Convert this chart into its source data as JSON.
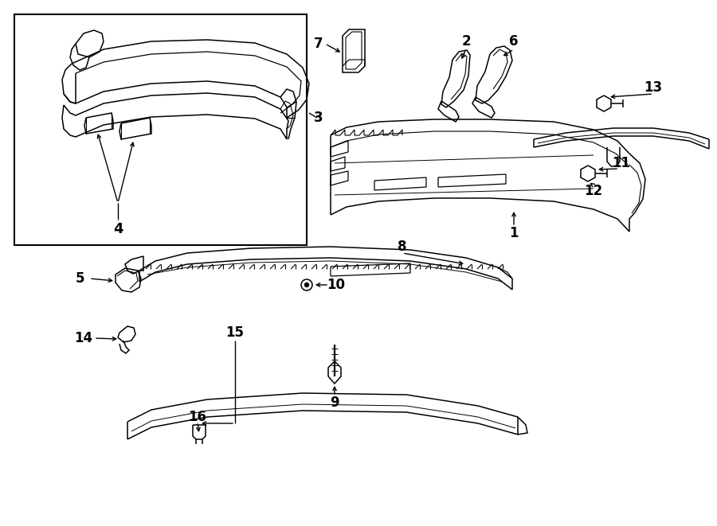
{
  "bg_color": "#ffffff",
  "lc": "#000000",
  "lw": 1.1,
  "fig_w": 9.0,
  "fig_h": 6.61,
  "dpi": 100
}
